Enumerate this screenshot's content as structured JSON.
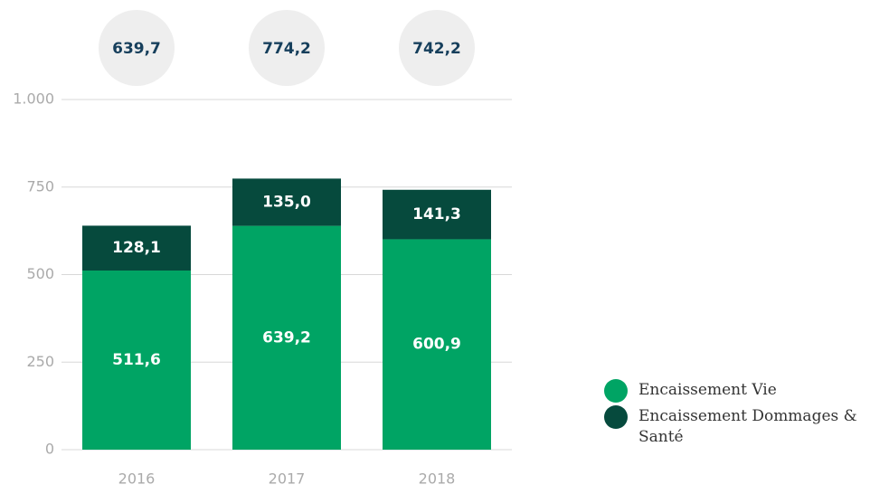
{
  "chart_data": {
    "type": "stacked_bar",
    "categories": [
      "2016",
      "2017",
      "2018"
    ],
    "series": [
      {
        "name": "Encaissement Vie",
        "color": "#00a464",
        "values": [
          511.6,
          639.2,
          600.9
        ],
        "value_labels": [
          "511,6",
          "639,2",
          "600,9"
        ]
      },
      {
        "name": "Encaissement Dommages & Santé",
        "color": "#064a3d",
        "values": [
          128.1,
          135.0,
          141.3
        ],
        "value_labels": [
          "128,1",
          "135,0",
          "141,3"
        ]
      }
    ],
    "totals": {
      "values": [
        639.7,
        774.2,
        742.2
      ],
      "value_labels": [
        "639,7",
        "774,2",
        "742,2"
      ]
    },
    "ylim": [
      0,
      1000
    ],
    "yticks": [
      0,
      250,
      500,
      750,
      {
        "value": 1000,
        "label": "1.000"
      }
    ],
    "grid": true,
    "legend": "bottom-right"
  }
}
